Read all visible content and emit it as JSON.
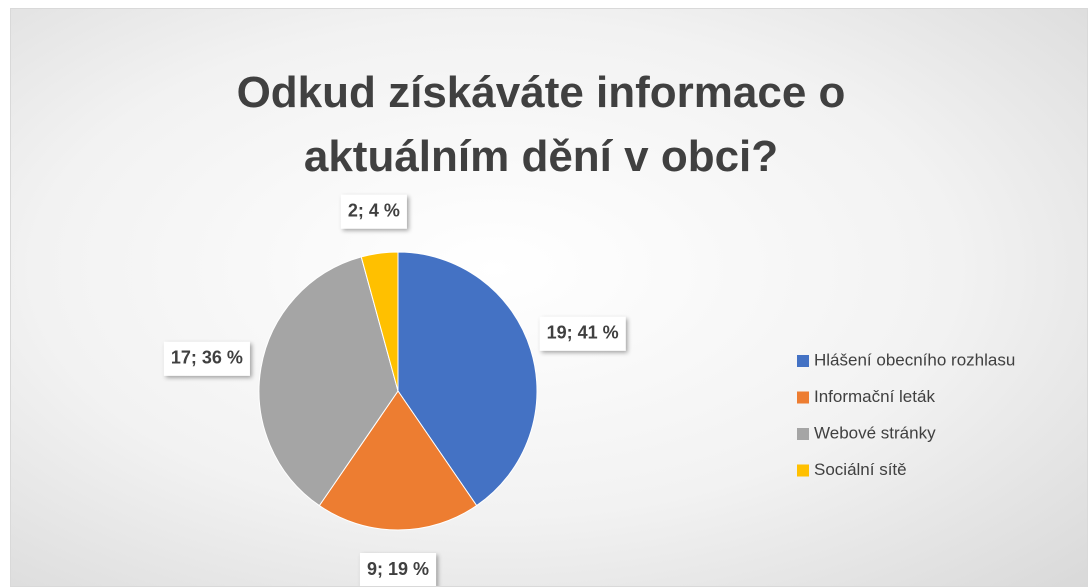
{
  "chart_data": {
    "type": "pie",
    "title": "Odkud získáváte informace o aktuálním dění v obci?",
    "categories": [
      "Hlášení obecního rozhlasu",
      "Informační leták",
      "Webové stránky",
      "Sociální sítě"
    ],
    "values": [
      19,
      9,
      17,
      2
    ],
    "value_labels": [
      "19; 41 %",
      "9; 19 %",
      "17; 36 %",
      "2; 4 %"
    ],
    "colors": [
      "#4472c4",
      "#ed7d31",
      "#a5a5a5",
      "#ffc000"
    ],
    "legend": "right"
  }
}
